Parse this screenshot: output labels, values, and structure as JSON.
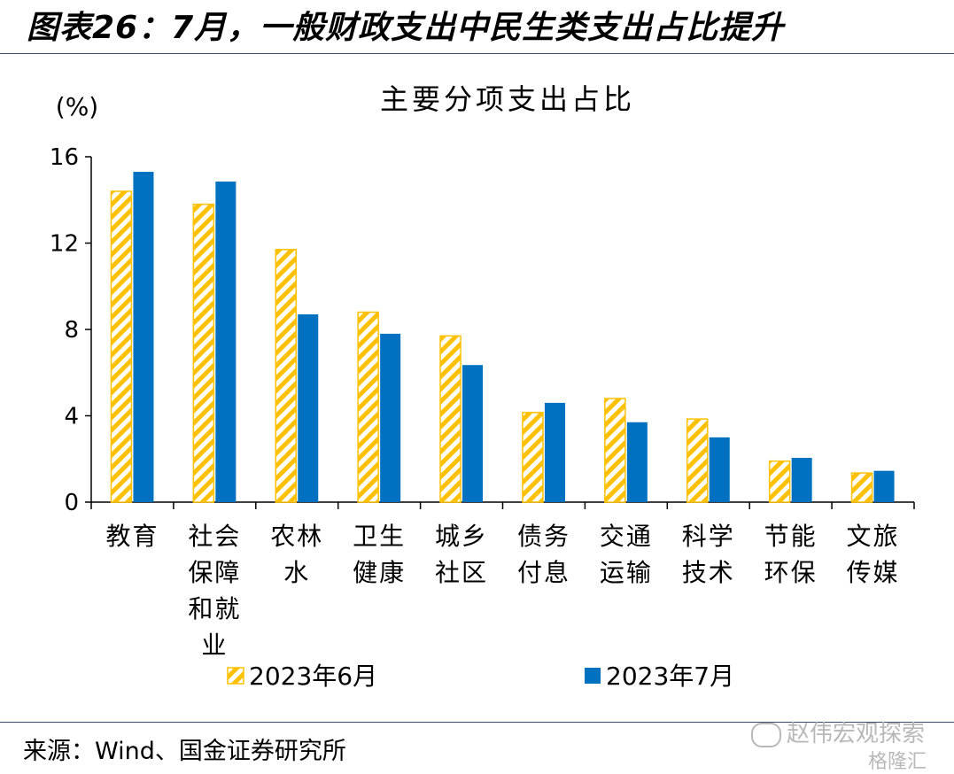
{
  "figure_title": "图表26：7月，一般财政支出中民生类支出占比提升",
  "source": "来源：Wind、国金证券研究所",
  "watermark": "赵伟宏观探索",
  "watermark2": "格隆汇",
  "colors": {
    "june": "#FFC000",
    "july": "#0070C0",
    "axis": "#000000"
  },
  "chart_data": {
    "type": "bar",
    "title": "主要分项支出占比",
    "ylabel": "(%)",
    "ylim": [
      0,
      16
    ],
    "yticks": [
      0,
      4,
      8,
      12,
      16
    ],
    "grid": false,
    "legend_position": "bottom",
    "categories": [
      "教育",
      "社会保障和就业",
      "农林水",
      "卫生健康",
      "城乡社区",
      "债务付息",
      "交通运输",
      "科学技术",
      "节能环保",
      "文旅传媒"
    ],
    "category_lines": [
      [
        "教育"
      ],
      [
        "社会",
        "保障",
        "和就",
        "业"
      ],
      [
        "农林",
        "水"
      ],
      [
        "卫生",
        "健康"
      ],
      [
        "城乡",
        "社区"
      ],
      [
        "债务",
        "付息"
      ],
      [
        "交通",
        "运输"
      ],
      [
        "科学",
        "技术"
      ],
      [
        "节能",
        "环保"
      ],
      [
        "文旅",
        "传媒"
      ]
    ],
    "series": [
      {
        "name": "2023年6月",
        "pattern": "hatched",
        "values": [
          14.4,
          13.8,
          11.7,
          8.8,
          7.7,
          4.15,
          4.8,
          3.85,
          1.9,
          1.35
        ]
      },
      {
        "name": "2023年7月",
        "pattern": "solid",
        "values": [
          15.3,
          14.85,
          8.7,
          7.8,
          6.35,
          4.6,
          3.7,
          3.0,
          2.05,
          1.45
        ]
      }
    ]
  }
}
